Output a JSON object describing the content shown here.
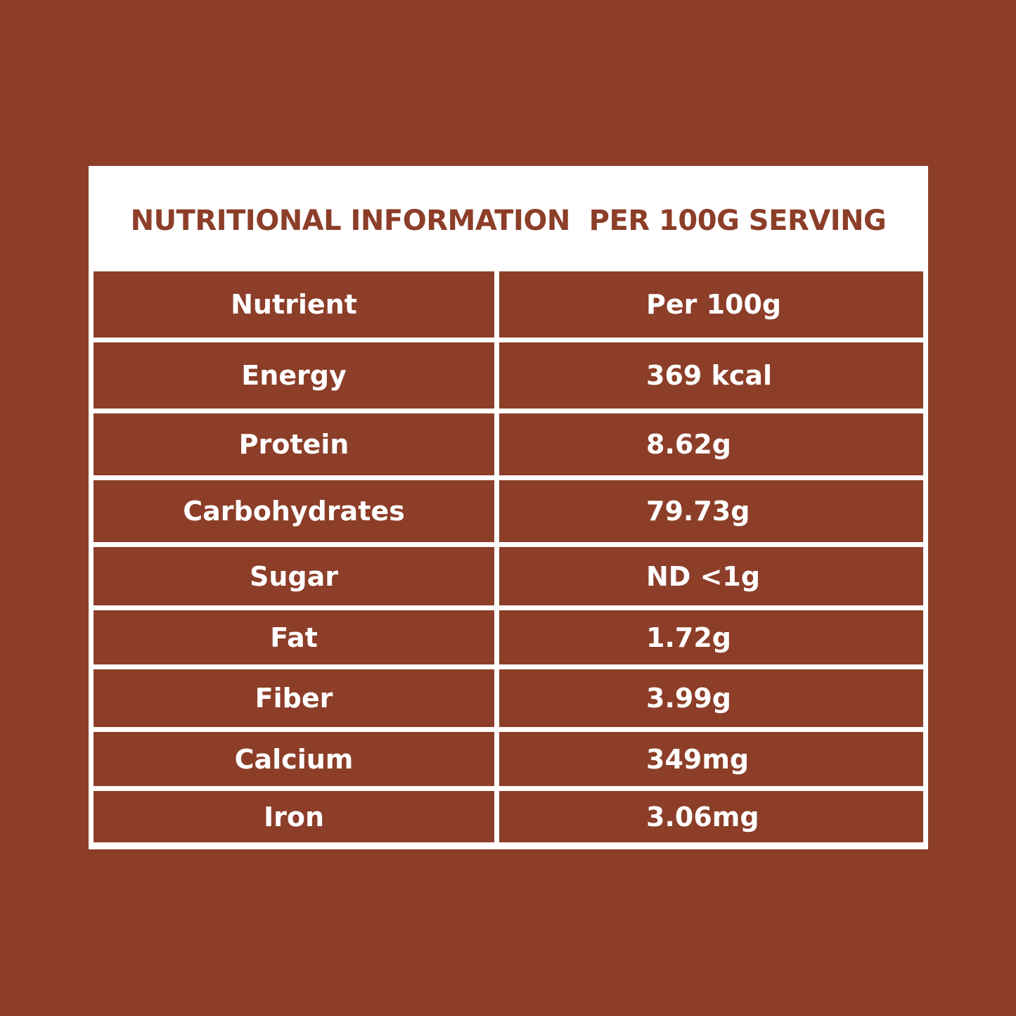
{
  "title": "NUTRITIONAL INFORMATION  PER 100G SERVING",
  "table": {
    "header": [
      "Nutrient",
      "Per 100g"
    ],
    "rows": [
      [
        "Energy",
        "369 kcal"
      ],
      [
        "Protein",
        "8.62g"
      ],
      [
        "Carbohydrates",
        "79.73g"
      ],
      [
        "Sugar",
        "ND <1g"
      ],
      [
        "Fat",
        "1.72g"
      ],
      [
        "Fiber",
        "3.99g"
      ],
      [
        "Calcium",
        "349mg"
      ],
      [
        "Iron",
        "3.06mg"
      ]
    ]
  }
}
